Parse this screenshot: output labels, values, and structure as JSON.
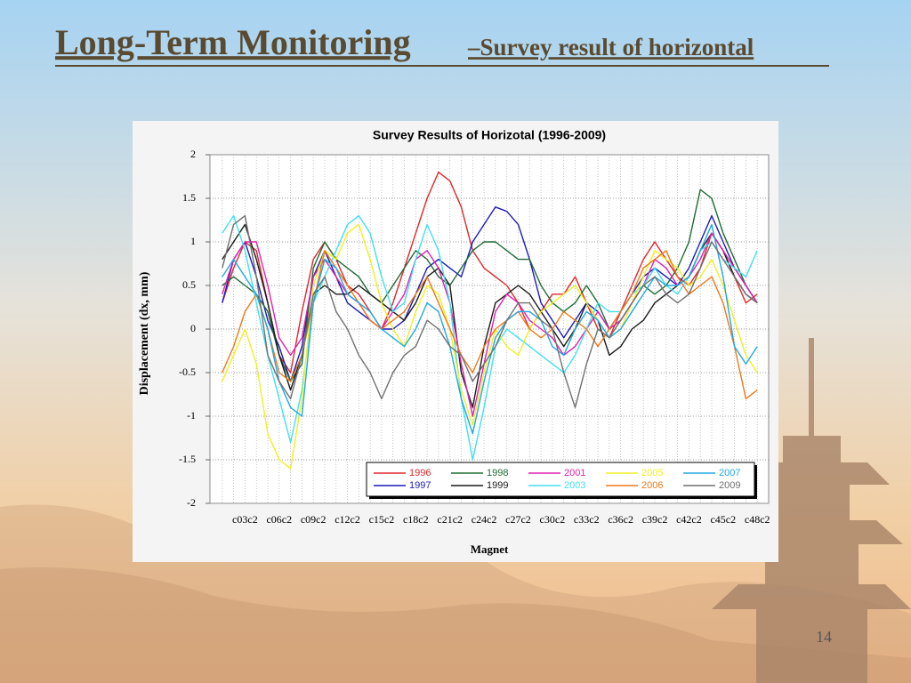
{
  "slide": {
    "title_main": "Long-Term Monitoring",
    "title_sub": "–Survey result of horizontal",
    "page_number": "14"
  },
  "chart_data": {
    "type": "line",
    "title": "Survey Results of Horizotal (1996-2009)",
    "x_label": "Magnet",
    "y_label": "Displacement (dx, mm)",
    "ylim": [
      -2,
      2
    ],
    "yticks": [
      2,
      1.5,
      1,
      0.5,
      0,
      -0.5,
      -1,
      -1.5,
      -2
    ],
    "grid": true,
    "legend": "lower-right",
    "categories": [
      null,
      null,
      "c03c2",
      null,
      null,
      "c06c2",
      null,
      null,
      "c09c2",
      null,
      null,
      "c12c2",
      null,
      null,
      "c15c2",
      null,
      null,
      "c18c2",
      null,
      null,
      "c21c2",
      null,
      null,
      "c24c2",
      null,
      null,
      "c27c2",
      null,
      null,
      "c30c2",
      null,
      null,
      "c33c2",
      null,
      null,
      "c36c2",
      null,
      null,
      "c39c2",
      null,
      null,
      "c42c2",
      null,
      null,
      "c45c2",
      null,
      null,
      "c48c2"
    ],
    "series": [
      {
        "name": "1996",
        "color": "#e0262b",
        "values": [
          0.3,
          0.7,
          1.0,
          0.9,
          0.3,
          -0.3,
          -0.5,
          0.2,
          0.8,
          1.0,
          0.8,
          0.5,
          0.4,
          0.2,
          0.0,
          0.3,
          0.7,
          1.1,
          1.5,
          1.8,
          1.7,
          1.4,
          0.9,
          0.7,
          0.6,
          0.5,
          0.3,
          0.0,
          0.2,
          0.4,
          0.4,
          0.6,
          0.3,
          0.0,
          -0.1,
          0.2,
          0.5,
          0.8,
          1.0,
          0.8,
          0.6,
          0.5,
          0.7,
          1.1,
          0.9,
          0.6,
          0.3,
          0.4
        ]
      },
      {
        "name": "1997",
        "color": "#1c1cb8",
        "values": [
          0.3,
          0.8,
          1.0,
          0.6,
          0.1,
          -0.2,
          -0.6,
          -0.2,
          0.6,
          0.9,
          0.6,
          0.3,
          0.2,
          0.1,
          0.0,
          0.0,
          0.1,
          0.4,
          0.7,
          0.8,
          0.7,
          0.6,
          1.0,
          1.2,
          1.4,
          1.35,
          1.2,
          0.8,
          0.3,
          0.1,
          -0.1,
          0.1,
          0.3,
          0.2,
          0.0,
          0.2,
          0.4,
          0.6,
          0.7,
          0.6,
          0.5,
          0.7,
          1.0,
          1.3,
          1.0,
          0.7,
          0.5,
          0.3
        ]
      },
      {
        "name": "1998",
        "color": "#1e6b32",
        "values": [
          0.5,
          0.6,
          0.5,
          0.4,
          0.2,
          -0.3,
          -0.6,
          -0.4,
          0.7,
          1.0,
          0.8,
          0.7,
          0.6,
          0.4,
          0.3,
          0.5,
          0.7,
          0.9,
          0.8,
          0.6,
          0.5,
          0.7,
          0.9,
          1.0,
          1.0,
          0.9,
          0.8,
          0.8,
          0.5,
          0.3,
          0.2,
          0.3,
          0.5,
          0.3,
          0.0,
          0.1,
          0.3,
          0.5,
          0.4,
          0.5,
          0.7,
          1.0,
          1.6,
          1.5,
          1.1,
          0.8,
          0.5,
          0.3
        ]
      },
      {
        "name": "1999",
        "color": "#1a1a1a",
        "values": [
          0.8,
          1.0,
          1.2,
          0.8,
          0.3,
          -0.3,
          -0.7,
          -0.3,
          0.4,
          0.5,
          0.4,
          0.4,
          0.5,
          0.4,
          0.3,
          0.2,
          0.1,
          0.3,
          0.6,
          0.7,
          0.5,
          -0.5,
          -0.9,
          -0.2,
          0.3,
          0.4,
          0.5,
          0.4,
          0.2,
          0.0,
          -0.2,
          0.0,
          0.3,
          0.1,
          -0.3,
          -0.2,
          0.0,
          0.1,
          0.3,
          0.4,
          0.5,
          0.6,
          0.9,
          1.1,
          0.9,
          0.6,
          0.4,
          0.3
        ]
      },
      {
        "name": "2001",
        "color": "#e020b0",
        "values": [
          0.4,
          0.8,
          1.0,
          1.0,
          0.5,
          -0.1,
          -0.3,
          -0.1,
          0.6,
          0.8,
          0.6,
          0.4,
          0.3,
          0.1,
          0.0,
          0.2,
          0.4,
          0.8,
          0.9,
          0.7,
          0.3,
          -0.4,
          -1.0,
          -0.4,
          0.2,
          0.4,
          0.3,
          0.1,
          0.0,
          -0.1,
          -0.3,
          -0.2,
          0.0,
          0.2,
          0.0,
          0.1,
          0.3,
          0.5,
          0.8,
          0.7,
          0.5,
          0.6,
          0.8,
          1.1,
          0.9,
          0.7,
          0.5,
          0.3
        ]
      },
      {
        "name": "2003",
        "color": "#40e0f0",
        "values": [
          1.1,
          1.3,
          0.9,
          0.3,
          -0.3,
          -0.8,
          -1.3,
          -0.7,
          0.3,
          0.6,
          0.9,
          1.2,
          1.3,
          1.1,
          0.6,
          0.2,
          0.3,
          0.8,
          1.2,
          0.9,
          0.3,
          -0.8,
          -1.5,
          -0.9,
          -0.2,
          0.0,
          -0.1,
          -0.2,
          -0.3,
          -0.4,
          -0.5,
          -0.3,
          0.0,
          0.3,
          0.2,
          0.2,
          0.4,
          0.5,
          0.7,
          0.5,
          0.4,
          0.6,
          0.9,
          1.0,
          0.8,
          0.7,
          0.6,
          0.9
        ]
      },
      {
        "name": "2005",
        "color": "#f0f020",
        "values": [
          -0.6,
          -0.3,
          0.0,
          -0.4,
          -1.2,
          -1.5,
          -1.6,
          -0.8,
          0.5,
          0.9,
          0.8,
          1.1,
          1.2,
          0.8,
          0.3,
          0.0,
          -0.2,
          0.2,
          0.5,
          0.4,
          0.0,
          -0.7,
          -1.1,
          -0.5,
          0.0,
          -0.2,
          -0.3,
          0.0,
          0.2,
          0.3,
          0.4,
          0.5,
          0.3,
          0.1,
          -0.1,
          0.0,
          0.3,
          0.6,
          0.9,
          0.8,
          0.7,
          0.5,
          0.6,
          0.8,
          0.5,
          0.1,
          -0.3,
          -0.5
        ]
      },
      {
        "name": "2006",
        "color": "#f07818",
        "values": [
          -0.5,
          -0.2,
          0.2,
          0.4,
          0.0,
          -0.5,
          -0.6,
          -0.3,
          0.3,
          0.9,
          0.7,
          0.5,
          0.3,
          0.1,
          0.0,
          0.1,
          0.2,
          0.4,
          0.6,
          0.3,
          0.0,
          -0.3,
          -0.5,
          -0.2,
          0.0,
          0.1,
          0.2,
          0.0,
          -0.1,
          0.0,
          0.2,
          0.1,
          0.0,
          -0.2,
          0.0,
          0.2,
          0.4,
          0.7,
          0.8,
          0.9,
          0.6,
          0.4,
          0.5,
          0.6,
          0.3,
          -0.2,
          -0.8,
          -0.7
        ]
      },
      {
        "name": "2007",
        "color": "#20a8e0",
        "values": [
          0.6,
          0.8,
          0.6,
          0.4,
          0.0,
          -0.6,
          -0.9,
          -1.0,
          0.3,
          0.8,
          0.7,
          0.4,
          0.3,
          0.2,
          0.0,
          -0.1,
          -0.2,
          0.0,
          0.3,
          0.2,
          -0.2,
          -0.8,
          -1.2,
          -0.6,
          -0.1,
          0.1,
          0.2,
          0.2,
          0.1,
          -0.2,
          -0.3,
          0.0,
          0.2,
          0.1,
          -0.1,
          0.0,
          0.2,
          0.4,
          0.6,
          0.5,
          0.5,
          0.6,
          0.9,
          1.2,
          0.6,
          -0.2,
          -0.4,
          -0.2
        ]
      },
      {
        "name": "2009",
        "color": "#707070",
        "values": [
          0.7,
          1.2,
          1.3,
          0.6,
          -0.3,
          -0.6,
          -0.8,
          -0.3,
          0.4,
          0.6,
          0.2,
          0.0,
          -0.3,
          -0.5,
          -0.8,
          -0.5,
          -0.3,
          -0.2,
          0.1,
          0.0,
          -0.2,
          -0.3,
          -0.6,
          -0.4,
          -0.2,
          0.1,
          0.3,
          0.3,
          0.1,
          0.0,
          -0.5,
          -0.9,
          -0.4,
          0.0,
          -0.1,
          0.1,
          0.3,
          0.5,
          0.6,
          0.4,
          0.3,
          0.4,
          0.7,
          1.0,
          0.8,
          0.6,
          0.4,
          0.3
        ]
      }
    ]
  }
}
